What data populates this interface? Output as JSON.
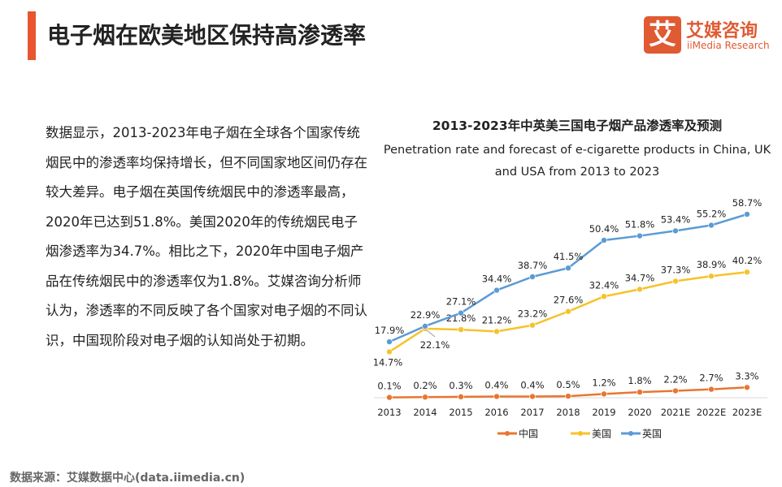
{
  "header": {
    "title": "电子烟在欧美地区保持高渗透率"
  },
  "logo": {
    "mark": "艾",
    "name_cn": "艾媒咨询",
    "name_en": "iiMedia Research"
  },
  "body_text": "数据显示，2013-2023年电子烟在全球各个国家传统烟民中的渗透率均保持增长，但不同国家地区间仍存在较大差异。电子烟在英国传统烟民中的渗透率最高，2020年已达到51.8%。美国2020年的传统烟民电子烟渗透率为34.7%。相比之下，2020年中国电子烟产品在传统烟民中的渗透率仅为1.8%。艾媒咨询分析师认为，渗透率的不同反映了各个国家对电子烟的不同认识，中国现阶段对电子烟的认知尚处于初期。",
  "footer": {
    "source": "数据来源：艾媒数据中心(data.iimedia.cn)"
  },
  "chart_data": {
    "type": "line",
    "title": "2013-2023年中英美三国电子烟产品渗透率及预测",
    "subtitle": "Penetration rate and forecast of e-cigarette products in China, UK and USA from 2013 to 2023",
    "categories": [
      "2013",
      "2014",
      "2015",
      "2016",
      "2017",
      "2018",
      "2019",
      "2020",
      "2021E",
      "2022E",
      "2023E"
    ],
    "unit": "%",
    "ylim": [
      0,
      60
    ],
    "grid": false,
    "legend_placement": "bottom",
    "series": [
      {
        "name": "中国",
        "color": "#e8762f",
        "values": [
          0.1,
          0.2,
          0.3,
          0.4,
          0.4,
          0.5,
          1.2,
          1.8,
          2.2,
          2.7,
          3.3
        ]
      },
      {
        "name": "美国",
        "color": "#f7c22a",
        "values": [
          14.7,
          22.1,
          21.8,
          21.2,
          23.2,
          27.6,
          32.4,
          34.7,
          37.3,
          38.9,
          40.2
        ]
      },
      {
        "name": "英国",
        "color": "#5b9bd5",
        "values": [
          17.9,
          22.9,
          27.1,
          34.4,
          38.7,
          41.5,
          50.4,
          51.8,
          53.4,
          55.2,
          58.7
        ]
      }
    ]
  }
}
